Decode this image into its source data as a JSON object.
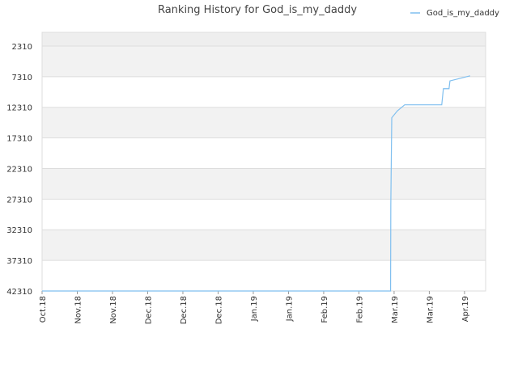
{
  "chart_data": {
    "type": "line",
    "title": "Ranking History for God_is_my_daddy",
    "x": [
      0,
      148.5,
      148.6,
      149,
      151.4,
      154.5,
      170.3,
      171,
      173.4,
      173.8,
      182.4
    ],
    "series": [
      {
        "name": "God_is_my_daddy",
        "color": "#7fbfef",
        "values": [
          42310,
          42310,
          28100,
          14020,
          12900,
          11910,
          11910,
          9280,
          9280,
          8000,
          7180
        ]
      }
    ],
    "xlim": [
      0,
      189
    ],
    "xticks": [
      {
        "value": 0,
        "label": "Oct.18"
      },
      {
        "value": 15,
        "label": "Nov.18"
      },
      {
        "value": 30,
        "label": "Nov.18"
      },
      {
        "value": 45,
        "label": "Dec.18"
      },
      {
        "value": 60,
        "label": "Dec.18"
      },
      {
        "value": 75,
        "label": "Dec.18"
      },
      {
        "value": 90,
        "label": "Jan.19"
      },
      {
        "value": 105,
        "label": "Jan.19"
      },
      {
        "value": 120,
        "label": "Feb.19"
      },
      {
        "value": 135,
        "label": "Feb.19"
      },
      {
        "value": 150,
        "label": "Mar.19"
      },
      {
        "value": 165,
        "label": "Mar.19"
      },
      {
        "value": 180,
        "label": "Apr.19"
      }
    ],
    "ylim": [
      42310,
      73
    ],
    "yticks": [
      2310,
      7310,
      12310,
      17310,
      22310,
      27310,
      32310,
      37310,
      42310
    ],
    "grid": true,
    "legend": "top-right"
  }
}
